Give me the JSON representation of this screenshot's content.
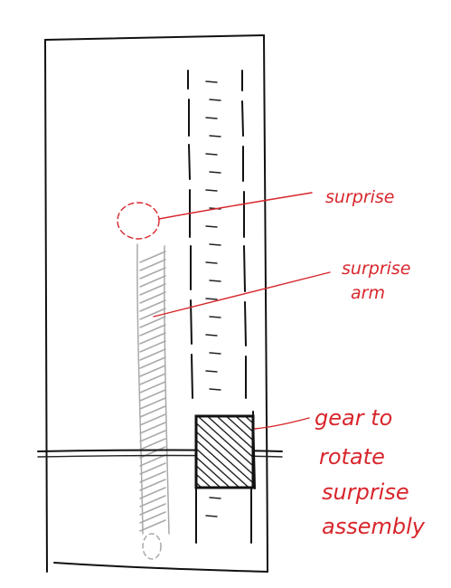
{
  "diagram": {
    "labels": {
      "surprise": "surprise",
      "surprise_arm_line1": "surprise",
      "surprise_arm_line2": "arm",
      "gear_line1": "gear to",
      "gear_line2": "rotate",
      "gear_line3": "surprise",
      "gear_line4": "assembly"
    },
    "colors": {
      "ink": "#111111",
      "annotation": "#d8262c",
      "ghost": "#a9a9a9"
    }
  }
}
